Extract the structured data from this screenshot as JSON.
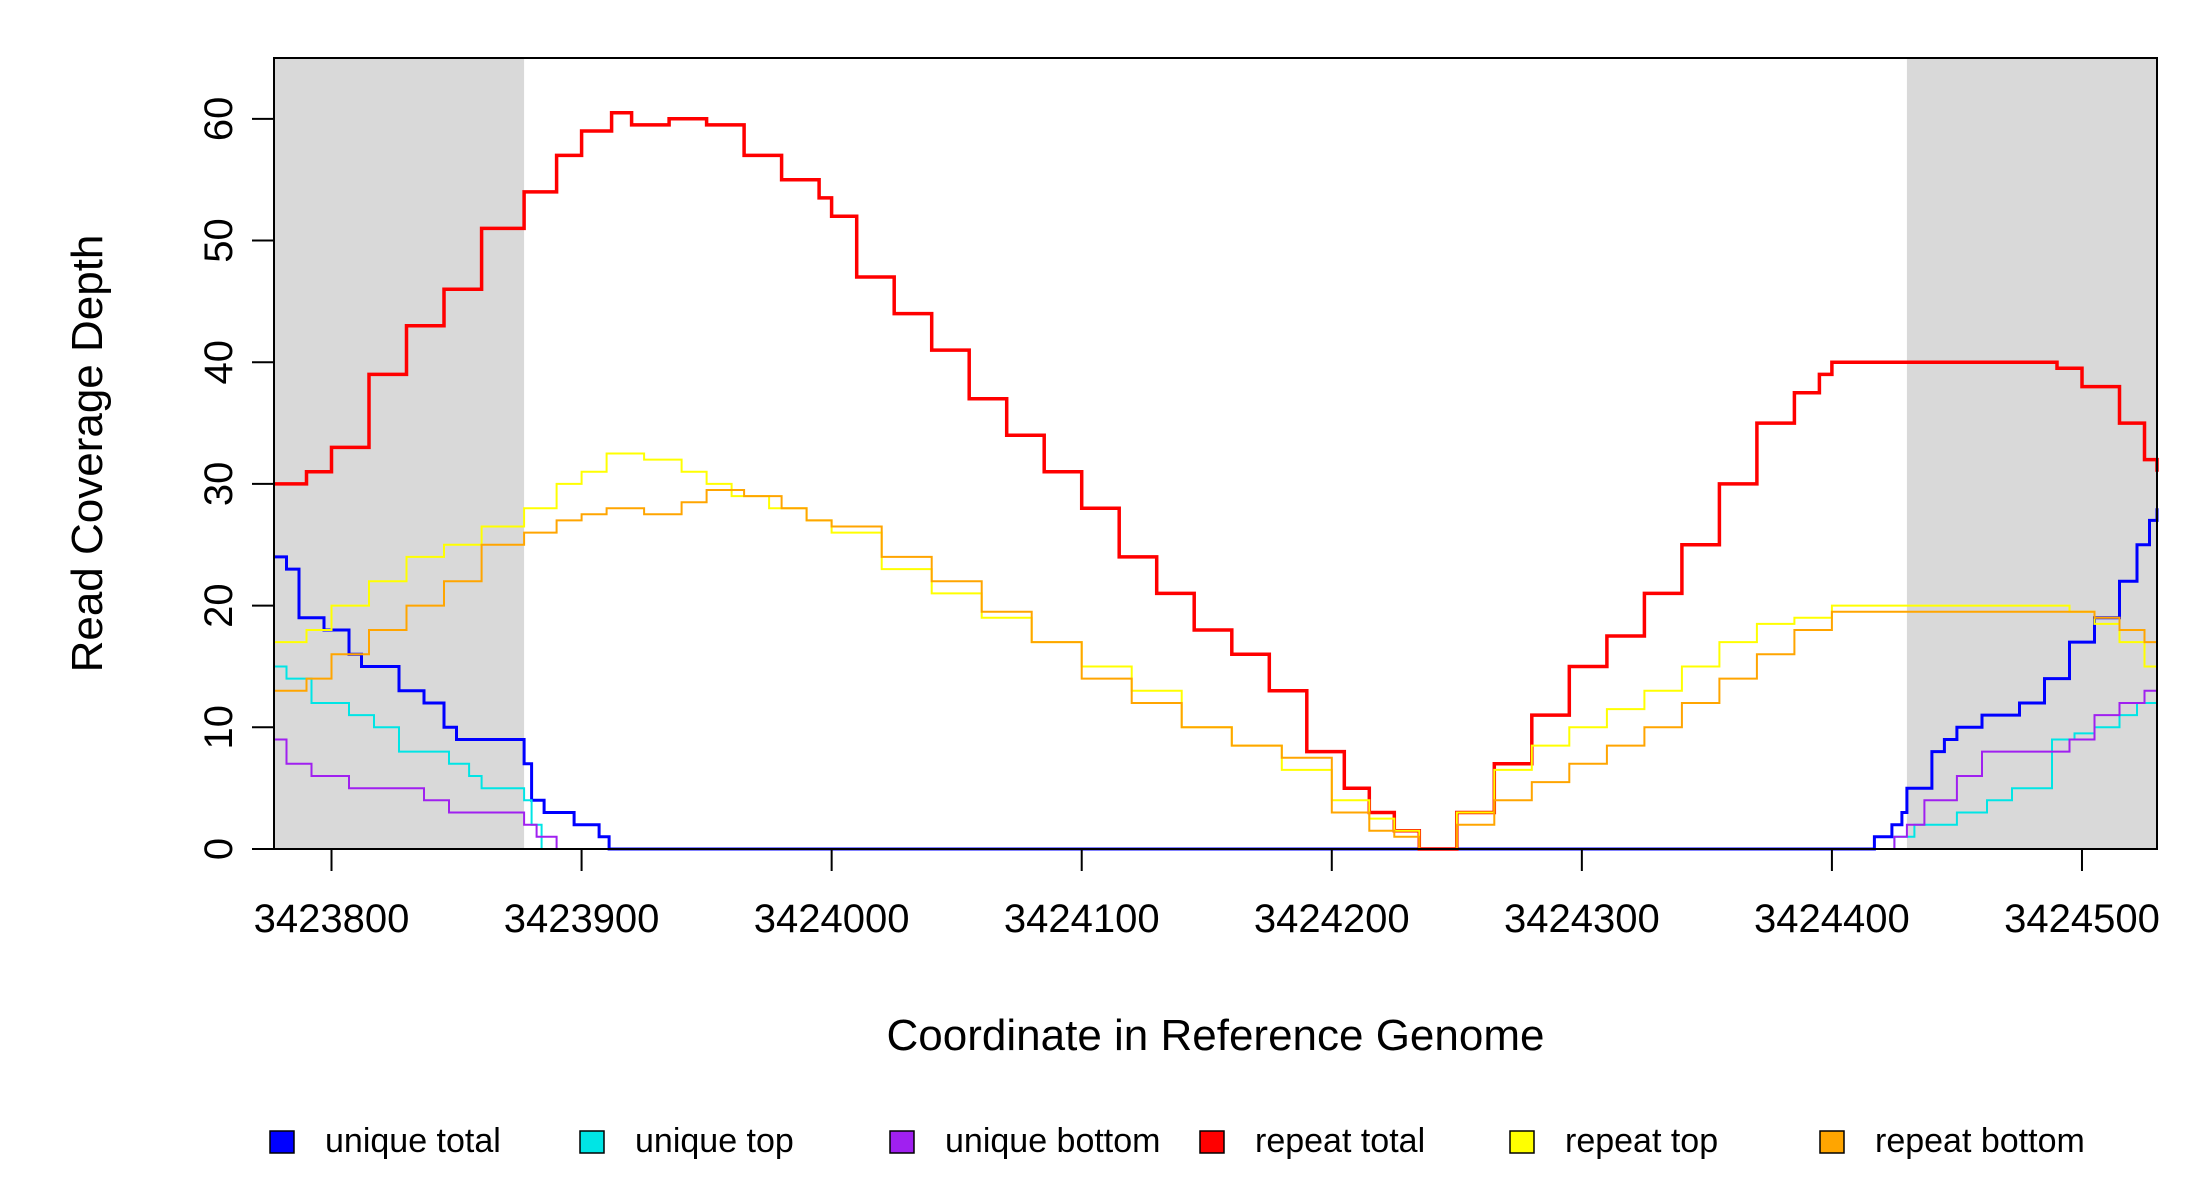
{
  "chart_data": {
    "type": "line",
    "title": "",
    "xlabel": "Coordinate in Reference Genome",
    "ylabel": "Read Coverage Depth",
    "xlim": [
      3423777,
      3424530
    ],
    "ylim": [
      0,
      65
    ],
    "x_ticks": [
      "3423800",
      "3423900",
      "3424000",
      "3424100",
      "3424200",
      "3424300",
      "3424400",
      "3424500"
    ],
    "y_ticks": [
      "0",
      "10",
      "20",
      "30",
      "40",
      "50",
      "60"
    ],
    "grid": false,
    "legend_position": "bottom",
    "shaded_regions": [
      {
        "x0": 3423777,
        "x1": 3423877,
        "color": "#d9d9d9"
      },
      {
        "x0": 3424430,
        "x1": 3424530,
        "color": "#d9d9d9"
      }
    ],
    "series": [
      {
        "name": "unique total",
        "color": "#0000ff",
        "width": 3,
        "x": [
          3423777,
          3423782,
          3423787,
          3423797,
          3423807,
          3423812,
          3423827,
          3423837,
          3423845,
          3423850,
          3423877,
          3423880,
          3423885,
          3423897,
          3423907,
          3423911,
          3424230,
          3424404,
          3424417,
          3424424,
          3424428,
          3424430,
          3424440,
          3424445,
          3424450,
          3424460,
          3424475,
          3424485,
          3424495,
          3424505,
          3424515,
          3424522,
          3424527,
          3424530
        ],
        "y": [
          24,
          23,
          19,
          18,
          16,
          15,
          13,
          12,
          10,
          9,
          7,
          4,
          3,
          2,
          1,
          0,
          0,
          0,
          1,
          2,
          3,
          5,
          8,
          9,
          10,
          11,
          12,
          14,
          17,
          19,
          22,
          25,
          27,
          28
        ]
      },
      {
        "name": "unique top",
        "color": "#00e5e5",
        "width": 2,
        "x": [
          3423777,
          3423782,
          3423792,
          3423807,
          3423817,
          3423827,
          3423847,
          3423855,
          3423860,
          3423877,
          3423880,
          3423884,
          3424230,
          3424415,
          3424425,
          3424433,
          3424450,
          3424462,
          3424472,
          3424488,
          3424497,
          3424505,
          3424515,
          3424522,
          3424530
        ],
        "y": [
          15,
          14,
          12,
          11,
          10,
          8,
          7,
          6,
          5,
          4,
          2,
          0,
          0,
          0,
          1,
          2,
          3,
          4,
          5,
          9,
          9.5,
          10,
          11,
          12,
          13
        ]
      },
      {
        "name": "unique bottom",
        "color": "#a020f0",
        "width": 2,
        "x": [
          3423777,
          3423782,
          3423792,
          3423807,
          3423837,
          3423847,
          3423877,
          3423882,
          3423890,
          3424230,
          3424415,
          3424425,
          3424430,
          3424437,
          3424450,
          3424460,
          3424485,
          3424495,
          3424505,
          3424515,
          3424525,
          3424530
        ],
        "y": [
          9,
          7,
          6,
          5,
          4,
          3,
          2,
          1,
          0,
          0,
          0,
          1,
          2,
          4,
          6,
          8,
          8,
          9,
          11,
          12,
          13,
          14
        ]
      },
      {
        "name": "repeat total",
        "color": "#ff0000",
        "width": 3.5,
        "x": [
          3423777,
          3423790,
          3423800,
          3423815,
          3423830,
          3423845,
          3423860,
          3423877,
          3423890,
          3423900,
          3423912,
          3423920,
          3423935,
          3423950,
          3423965,
          3423980,
          3423995,
          3424000,
          3424010,
          3424025,
          3424040,
          3424055,
          3424070,
          3424085,
          3424100,
          3424115,
          3424130,
          3424145,
          3424160,
          3424175,
          3424190,
          3424205,
          3424215,
          3424225,
          3424235,
          3424250,
          3424265,
          3424280,
          3424295,
          3424310,
          3424325,
          3424340,
          3424355,
          3424370,
          3424385,
          3424395,
          3424400,
          3424410,
          3424430,
          3424450,
          3424470,
          3424490,
          3424500,
          3424515,
          3424525,
          3424530
        ],
        "y": [
          30,
          31,
          33,
          39,
          43,
          46,
          51,
          54,
          57,
          59,
          60.5,
          59.5,
          60,
          59.5,
          57,
          55,
          53.5,
          52,
          47,
          44,
          41,
          37,
          34,
          31,
          28,
          24,
          21,
          18,
          16,
          13,
          8,
          5,
          3,
          1.5,
          0,
          3,
          7,
          11,
          15,
          17.5,
          21,
          25,
          30,
          35,
          37.5,
          39,
          40,
          40,
          40,
          40,
          40,
          39.5,
          38,
          35,
          32,
          31
        ]
      },
      {
        "name": "repeat top",
        "color": "#ffff00",
        "width": 2,
        "x": [
          3423777,
          3423790,
          3423800,
          3423815,
          3423830,
          3423845,
          3423860,
          3423877,
          3423890,
          3423900,
          3423910,
          3423925,
          3423940,
          3423950,
          3423960,
          3423975,
          3423990,
          3424000,
          3424020,
          3424040,
          3424060,
          3424080,
          3424100,
          3424120,
          3424140,
          3424160,
          3424180,
          3424200,
          3424215,
          3424225,
          3424235,
          3424250,
          3424265,
          3424280,
          3424295,
          3424310,
          3424325,
          3424340,
          3424355,
          3424370,
          3424385,
          3424400,
          3424420,
          3424440,
          3424460,
          3424480,
          3424495,
          3424505,
          3424515,
          3424525,
          3424530
        ],
        "y": [
          17,
          18,
          20,
          22,
          24,
          25,
          26.5,
          28,
          30,
          31,
          32.5,
          32,
          31,
          30,
          29,
          28,
          27,
          26,
          23,
          21,
          19,
          17,
          15,
          13,
          10,
          8.5,
          6.5,
          4,
          2.5,
          1.5,
          0,
          3,
          6.5,
          8.5,
          10,
          11.5,
          13,
          15,
          17,
          18.5,
          19,
          20,
          20,
          20,
          20,
          20,
          19.5,
          18.5,
          17,
          15,
          14.5
        ]
      },
      {
        "name": "repeat bottom",
        "color": "#ffa500",
        "width": 2,
        "x": [
          3423777,
          3423790,
          3423800,
          3423815,
          3423830,
          3423845,
          3423860,
          3423877,
          3423890,
          3423900,
          3423910,
          3423925,
          3423940,
          3423950,
          3423965,
          3423980,
          3423990,
          3424000,
          3424020,
          3424040,
          3424060,
          3424080,
          3424100,
          3424120,
          3424140,
          3424160,
          3424180,
          3424200,
          3424215,
          3424225,
          3424235,
          3424250,
          3424265,
          3424280,
          3424295,
          3424310,
          3424325,
          3424340,
          3424355,
          3424370,
          3424385,
          3424400,
          3424420,
          3424440,
          3424460,
          3424480,
          3424495,
          3424505,
          3424515,
          3424525,
          3424530
        ],
        "y": [
          13,
          14,
          16,
          18,
          20,
          22,
          25,
          26,
          27,
          27.5,
          28,
          27.5,
          28.5,
          29.5,
          29,
          28,
          27,
          26.5,
          24,
          22,
          19.5,
          17,
          14,
          12,
          10,
          8.5,
          7.5,
          3,
          1.5,
          1,
          0,
          2,
          4,
          5.5,
          7,
          8.5,
          10,
          12,
          14,
          16,
          18,
          19.5,
          19.5,
          19.5,
          19.5,
          19.5,
          19.5,
          19,
          18,
          17,
          16.5
        ]
      }
    ]
  }
}
